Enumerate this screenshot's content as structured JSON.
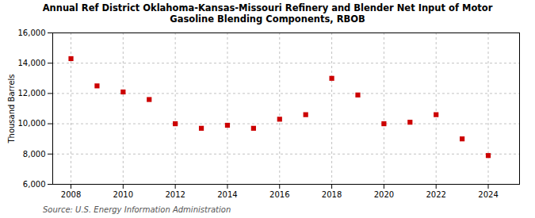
{
  "chart_data": {
    "type": "scatter",
    "title": "Annual Ref District Oklahoma-Kansas-Missouri Refinery and Blender Net Input of Motor\nGasoline Blending Components, RBOB",
    "ylabel": "Thousand Barrels",
    "source": "Source: U.S. Energy Information Administration",
    "x": [
      2008,
      2009,
      2010,
      2011,
      2012,
      2013,
      2014,
      2015,
      2016,
      2017,
      2018,
      2019,
      2020,
      2021,
      2022,
      2023,
      2024
    ],
    "values": [
      14300,
      12500,
      12100,
      11600,
      10000,
      9700,
      9900,
      9700,
      10300,
      10600,
      13000,
      11900,
      10000,
      10100,
      10600,
      9000,
      7900
    ],
    "color": "#cc0000",
    "marker": "square",
    "xlim": [
      2007.3,
      2025.2
    ],
    "ylim": [
      6000,
      16000
    ],
    "xticks": [
      2008,
      2010,
      2012,
      2014,
      2016,
      2018,
      2020,
      2022,
      2024
    ],
    "yticks": [
      {
        "value": 6000,
        "label": "6,000"
      },
      {
        "value": 8000,
        "label": "8,000"
      },
      {
        "value": 10000,
        "label": "10,000"
      },
      {
        "value": 12000,
        "label": "12,000"
      },
      {
        "value": 14000,
        "label": "14,000"
      },
      {
        "value": 16000,
        "label": "16,000"
      }
    ],
    "grid": true
  }
}
